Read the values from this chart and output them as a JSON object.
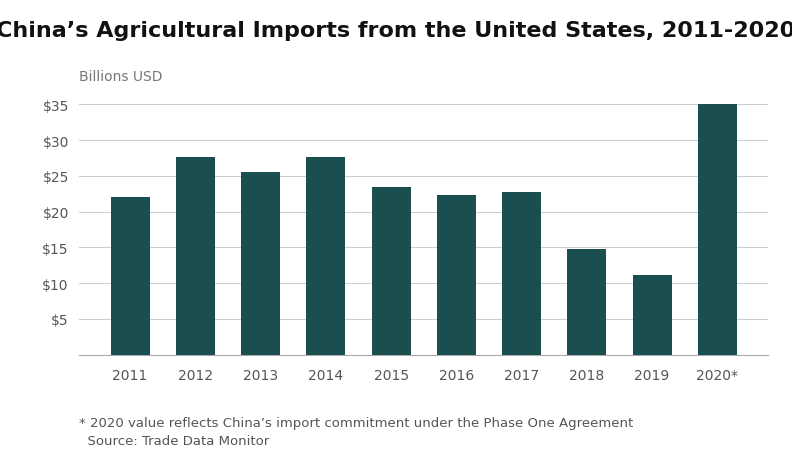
{
  "title": "China’s Agricultural Imports from the United States, 2011-2020",
  "ylabel": "Billions USD",
  "categories": [
    "2011",
    "2012",
    "2013",
    "2014",
    "2015",
    "2016",
    "2017",
    "2018",
    "2019",
    "2020*"
  ],
  "values": [
    22.1,
    27.6,
    25.6,
    27.6,
    23.5,
    22.4,
    22.8,
    14.8,
    11.2,
    35.0
  ],
  "bar_color": "#1b4f4f",
  "background_color": "#ffffff",
  "ylim": [
    0,
    37
  ],
  "yticks": [
    5,
    10,
    15,
    20,
    25,
    30,
    35
  ],
  "grid_color": "#cccccc",
  "footnote1": "* 2020 value reflects China’s import commitment under the Phase One Agreement",
  "footnote2": "  Source: Trade Data Monitor",
  "title_fontsize": 16,
  "tick_fontsize": 10,
  "label_fontsize": 10,
  "footnote_fontsize": 9.5
}
